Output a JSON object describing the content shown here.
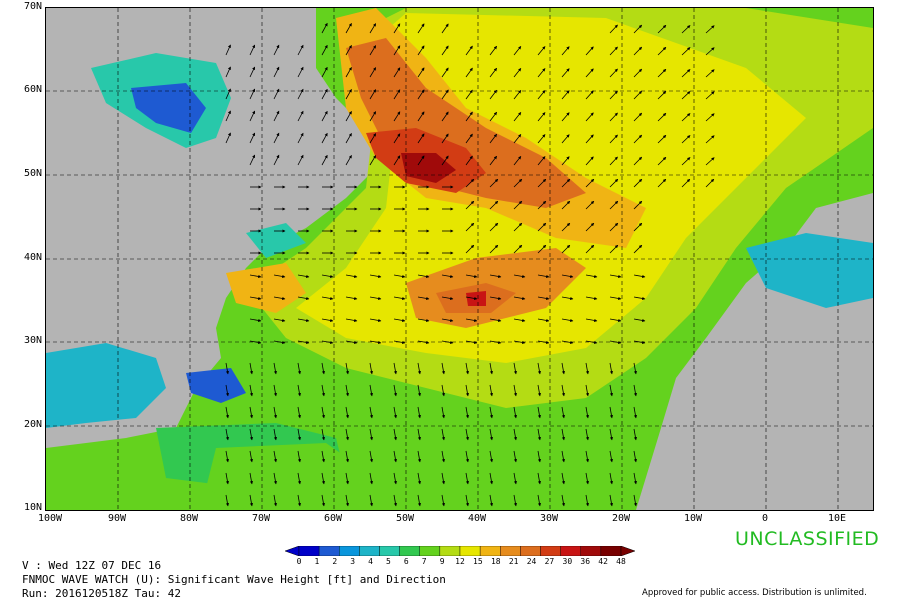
{
  "map": {
    "lat_labels": [
      "70N",
      "60N",
      "50N",
      "40N",
      "30N",
      "20N",
      "10N"
    ],
    "lon_labels": [
      "100W",
      "90W",
      "80W",
      "70W",
      "60W",
      "50W",
      "40W",
      "30W",
      "20W",
      "10W",
      "0",
      "10E"
    ]
  },
  "colors": {
    "land": "#b4b4b4",
    "scale": [
      "#0000c8",
      "#1e5ad2",
      "#0a96dc",
      "#1eb4c8",
      "#28c8aa",
      "#32c850",
      "#64d21e",
      "#b4dc14",
      "#e6e600",
      "#f0b414",
      "#e68c1e",
      "#dc6e1e",
      "#d23c14",
      "#c81414",
      "#a00a0a",
      "#780000"
    ]
  },
  "colorbar": {
    "ticks": [
      "0",
      "1",
      "2",
      "3",
      "4",
      "5",
      "6",
      "7",
      "9",
      "12",
      "15",
      "18",
      "21",
      "24",
      "27",
      "30",
      "36",
      "42",
      "48"
    ]
  },
  "stamp": "UNCLASSIFIED",
  "info": {
    "valid": "V : Wed 12Z 07 DEC 16",
    "product": "FNMOC WAVE WATCH (U): Significant Wave Height [ft] and Direction",
    "run": "Run: 2016120518Z Tau: 42"
  },
  "approval": "Approved for public access. Distribution is unlimited."
}
